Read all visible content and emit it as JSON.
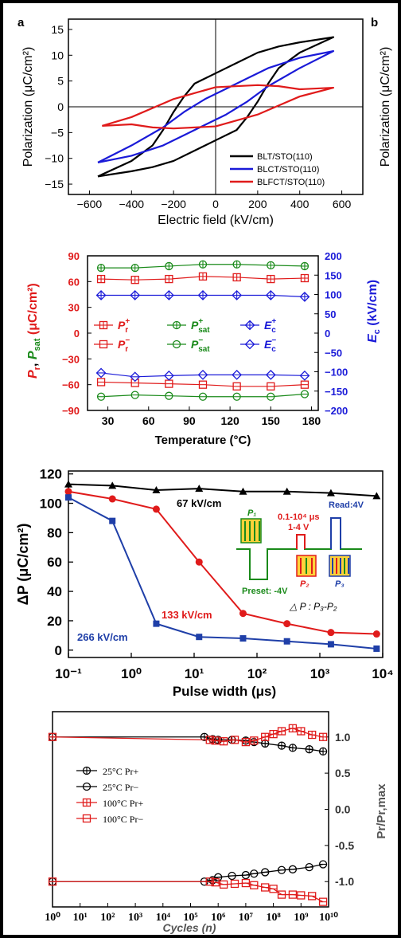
{
  "colors": {
    "black": "#000000",
    "blue": "#1a1ad8",
    "red": "#e01b1b",
    "green": "#1a8a1a",
    "darkblue": "#1f3fa8"
  },
  "panels": [
    {
      "letter": "a"
    },
    {
      "letter": "b"
    }
  ],
  "chart_data": [
    {
      "type": "line",
      "xlabel": "Electric field (kV/cm)",
      "ylabel": "Polarization (μC/cm²)",
      "xlim": [
        -700,
        700
      ],
      "ylim": [
        -17,
        17
      ],
      "xticks": [
        -600,
        -400,
        -200,
        0,
        200,
        400,
        600
      ],
      "yticks": [
        -15,
        -10,
        -5,
        0,
        5,
        10,
        15
      ],
      "legend_position": "bottom-right",
      "series": [
        {
          "name": "BLT/STO(110)",
          "color": "#000000",
          "x": [
            -560,
            -400,
            -300,
            -250,
            -200,
            -150,
            -100,
            0,
            100,
            200,
            300,
            400,
            560,
            400,
            300,
            250,
            200,
            150,
            100,
            0,
            -100,
            -200,
            -300,
            -400,
            -560
          ],
          "y": [
            -13.5,
            -10.5,
            -7.5,
            -4.5,
            -1,
            2,
            4.5,
            6.5,
            8.5,
            10.5,
            11.7,
            12.5,
            13.5,
            10.5,
            7.5,
            4.5,
            1,
            -2,
            -4.5,
            -6.5,
            -8.5,
            -10.5,
            -11.7,
            -12.5,
            -13.5
          ]
        },
        {
          "name": "BLCT/STO(110)",
          "color": "#1a1ad8",
          "x": [
            -560,
            -400,
            -250,
            -150,
            -50,
            50,
            150,
            250,
            400,
            560,
            400,
            250,
            150,
            50,
            -50,
            -150,
            -250,
            -400,
            -560
          ],
          "y": [
            -10.8,
            -7.5,
            -4,
            -1,
            1.5,
            3.5,
            5.5,
            7.5,
            9.5,
            10.8,
            7.5,
            4,
            1,
            -1.5,
            -3.5,
            -5.5,
            -7.5,
            -9.5,
            -10.8
          ]
        },
        {
          "name": "BLFCT/STO(110)",
          "color": "#e01b1b",
          "x": [
            -540,
            -400,
            -200,
            0,
            200,
            300,
            400,
            560,
            400,
            200,
            0,
            -200,
            -300,
            -400,
            -540
          ],
          "y": [
            -3.7,
            -2,
            1.5,
            3.8,
            4.2,
            4,
            3.4,
            3.7,
            2,
            -1.5,
            -3.8,
            -4.2,
            -4,
            -3.4,
            -3.7
          ]
        }
      ]
    },
    {
      "type": "line",
      "xlabel": "Temperature (°C)",
      "ylabel_left": "Pr, Psat (μC/cm²)",
      "ylabel_right": "Ec (kV/cm)",
      "xlim": [
        15,
        185
      ],
      "ylim_left": [
        -90,
        90
      ],
      "ylim_right": [
        -200,
        200
      ],
      "xticks": [
        30,
        60,
        90,
        120,
        150,
        180
      ],
      "yticks_left": [
        -90,
        -60,
        -30,
        0,
        30,
        60,
        90
      ],
      "yticks_right": [
        -200,
        -150,
        -100,
        -50,
        0,
        50,
        100,
        150,
        200
      ],
      "x": [
        25,
        50,
        75,
        100,
        125,
        150,
        175
      ],
      "series": [
        {
          "name": "Pr+",
          "axis": "left",
          "color": "#e01b1b",
          "marker": "square-plus",
          "values": [
            63,
            62,
            63,
            66,
            65,
            63,
            64
          ]
        },
        {
          "name": "Pr−",
          "axis": "left",
          "color": "#e01b1b",
          "marker": "square-minus",
          "values": [
            -57,
            -58,
            -59,
            -60,
            -62,
            -62,
            -60
          ]
        },
        {
          "name": "Psat+",
          "axis": "left",
          "color": "#1a8a1a",
          "marker": "circle-plus",
          "values": [
            76,
            76,
            78,
            80,
            80,
            79,
            78
          ]
        },
        {
          "name": "Psat−",
          "axis": "left",
          "color": "#1a8a1a",
          "marker": "circle-minus",
          "values": [
            -74,
            -72,
            -73,
            -74,
            -74,
            -74,
            -71
          ]
        },
        {
          "name": "Ec+",
          "axis": "right",
          "color": "#1a1ad8",
          "marker": "diamond-plus",
          "values": [
            98,
            98,
            98,
            98,
            98,
            98,
            94
          ]
        },
        {
          "name": "Ec−",
          "axis": "right",
          "color": "#1a1ad8",
          "marker": "diamond-minus",
          "values": [
            -103,
            -113,
            -110,
            -108,
            -108,
            -108,
            -110
          ]
        }
      ],
      "legend_labels": {
        "pr_plus": {
          "base": "P",
          "sub": "r",
          "sup": "+"
        },
        "pr_minus": {
          "base": "P",
          "sub": "r",
          "sup": "−"
        },
        "psat_plus": {
          "base": "P",
          "sub": "sat",
          "sup": "+"
        },
        "psat_minus": {
          "base": "P",
          "sub": "sat",
          "sup": "−"
        },
        "ec_plus": {
          "base": "E",
          "sub": "c",
          "sup": "+"
        },
        "ec_minus": {
          "base": "E",
          "sub": "c",
          "sup": "−"
        }
      }
    },
    {
      "type": "line",
      "xscale": "log",
      "xlabel": "Pulse width (μs)",
      "ylabel": "ΔP (μC/cm²)",
      "xlim": [
        0.1,
        10000
      ],
      "ylim": [
        -5,
        122
      ],
      "xticks": [
        "10⁻¹",
        "10⁰",
        "10¹",
        "10²",
        "10³",
        "10⁴"
      ],
      "yticks": [
        0,
        20,
        40,
        60,
        80,
        100,
        120
      ],
      "series": [
        {
          "name": "67 kV/cm",
          "color": "#000000",
          "marker": "triangle",
          "x": [
            0.1,
            0.5,
            2.5,
            12,
            60,
            300,
            1500,
            8000
          ],
          "y": [
            113,
            112,
            109,
            110,
            108,
            108,
            107,
            105
          ]
        },
        {
          "name": "133 kV/cm",
          "color": "#e01b1b",
          "marker": "circle",
          "x": [
            0.1,
            0.5,
            2.5,
            12,
            60,
            300,
            1500,
            8000
          ],
          "y": [
            108,
            103,
            96,
            60,
            25,
            18,
            12,
            11
          ]
        },
        {
          "name": "266 kV/cm",
          "color": "#1f3fa8",
          "marker": "square",
          "x": [
            0.1,
            0.5,
            2.5,
            12,
            60,
            300,
            1500,
            8000
          ],
          "y": [
            104,
            88,
            18,
            9,
            8,
            6,
            4,
            1
          ]
        }
      ],
      "inset": {
        "p1": "P₁",
        "p2": "P₂",
        "p3": "P₃",
        "preset": "Preset: -4V",
        "pulse_range": "0.1-10⁴ μs",
        "pulse_voltage": "1-4 V",
        "read": "Read:4V",
        "delta": "△ P : P₃-P₂"
      }
    },
    {
      "type": "line",
      "xscale": "log",
      "xlabel": "Cycles (n)",
      "ylabel": "Pr/Pr,max",
      "xlim": [
        1,
        10000000000
      ],
      "ylim": [
        -1.35,
        1.35
      ],
      "xticks": [
        "10⁰",
        "10¹",
        "10²",
        "10³",
        "10⁴",
        "10⁵",
        "10⁶",
        "10⁷",
        "10⁸",
        "10⁹",
        "10¹⁰"
      ],
      "yticks": [
        "1.0",
        "0.5",
        "0.0",
        "-0.5",
        "-1.0"
      ],
      "series": [
        {
          "name": "25°C Pr+",
          "color": "#000000",
          "marker": "circle-plus",
          "logx": [
            0,
            5.5,
            5.8,
            6.0,
            6.5,
            7.0,
            7.3,
            7.7,
            8.3,
            8.7,
            9.3,
            9.8
          ],
          "y": [
            1.0,
            1.0,
            0.97,
            0.96,
            0.96,
            0.95,
            0.93,
            0.91,
            0.88,
            0.85,
            0.83,
            0.8
          ]
        },
        {
          "name": "25°C Pr−",
          "color": "#000000",
          "marker": "circle-minus",
          "logx": [
            0,
            5.5,
            5.8,
            6.0,
            6.5,
            7.0,
            7.3,
            7.7,
            8.3,
            8.7,
            9.3,
            9.8
          ],
          "y": [
            -1.0,
            -1.0,
            -0.98,
            -0.94,
            -0.92,
            -0.91,
            -0.89,
            -0.87,
            -0.84,
            -0.83,
            -0.8,
            -0.76
          ]
        },
        {
          "name": "100°C Pr+",
          "color": "#e01b1b",
          "marker": "square-plus",
          "logx": [
            0,
            5.7,
            5.9,
            6.2,
            6.6,
            7.0,
            7.3,
            7.7,
            8.0,
            8.3,
            8.7,
            9.0,
            9.4,
            9.8
          ],
          "y": [
            1.0,
            0.96,
            0.95,
            0.94,
            0.96,
            0.93,
            0.95,
            1.0,
            1.04,
            1.08,
            1.12,
            1.08,
            1.03,
            1.0
          ]
        },
        {
          "name": "100°C Pr−",
          "color": "#e01b1b",
          "marker": "square-minus",
          "logx": [
            0,
            5.7,
            5.9,
            6.2,
            6.6,
            7.0,
            7.3,
            7.7,
            8.0,
            8.3,
            8.7,
            9.0,
            9.4,
            9.8
          ],
          "y": [
            -1.0,
            -1.0,
            -1.01,
            -1.04,
            -1.03,
            -1.02,
            -1.05,
            -1.08,
            -1.1,
            -1.18,
            -1.18,
            -1.19,
            -1.2,
            -1.28
          ]
        }
      ]
    }
  ]
}
